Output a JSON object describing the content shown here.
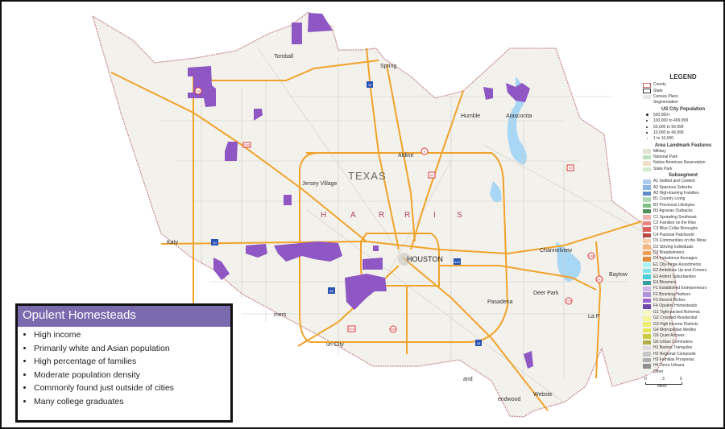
{
  "map": {
    "places": {
      "tomball": "Tomball",
      "spring": "Spring",
      "humble": "Humble",
      "atascocita": "Atascocita",
      "aldine": "Aldine",
      "jersey_village": "Jersey Village",
      "katy": "Katy",
      "houston": "HOUSTON",
      "channelview": "Channelview",
      "baytown": "Baytow",
      "deer_park": "Deer Park",
      "pasadena": "Pasadena",
      "la_porte": "La P",
      "cinco": "mers",
      "missouri_city": "uri City",
      "pearland": "and",
      "friendswood": "endwood",
      "webster": "Webste"
    },
    "state_label": "TEXAS",
    "county_letters": [
      "H",
      "A",
      "R",
      "R",
      "I",
      "S"
    ],
    "highway_shields": [
      "99",
      "290",
      "8",
      "59",
      "90",
      "146",
      "610",
      "69",
      "10",
      "45",
      "225",
      "288",
      "90A",
      "201"
    ],
    "highlight_color": "#8e57c4"
  },
  "legend": {
    "title": "LEGEND",
    "base": [
      {
        "label": "County"
      },
      {
        "label": "State"
      },
      {
        "label": "Census Place"
      },
      {
        "label": "Segmentation"
      }
    ],
    "city_pop_title": "US City Population",
    "city_pop": [
      "500,000+",
      "100,000 to 499,999",
      "50,000 to 99,999",
      "10,000 to 49,999",
      "1 to 10,000"
    ],
    "landmark_title": "Area Landmark Features",
    "landmarks": [
      {
        "label": "Military",
        "color": "#e3e0d6"
      },
      {
        "label": "National Park",
        "color": "#bfe0bf"
      },
      {
        "label": "Native American Reservation",
        "color": "#efe2c8"
      },
      {
        "label": "State Park",
        "color": "#cfeccc"
      }
    ],
    "subsegment_title": "Subsegment",
    "subsegments": [
      {
        "label": "A1 Settled and Content",
        "color": "#aecbed"
      },
      {
        "label": "A2 Spacious Suburbs",
        "color": "#8db6e6"
      },
      {
        "label": "A3 High-Earning Families",
        "color": "#5b8cc9"
      },
      {
        "label": "B1 Country Living",
        "color": "#b2d8b5"
      },
      {
        "label": "B2 Provincial Lifestyles",
        "color": "#7fbf86"
      },
      {
        "label": "B3 Agrarian Outbacks",
        "color": "#4f8f5a"
      },
      {
        "label": "C1 Sprawling Southeast",
        "color": "#f2b2b0"
      },
      {
        "label": "C2 Families on the Rise",
        "color": "#ea8482"
      },
      {
        "label": "C3 Blue Collar Boroughs",
        "color": "#d9625e"
      },
      {
        "label": "C4 Pastoral Patchwork",
        "color": "#b84a46"
      },
      {
        "label": "D1 Communities on the Move",
        "color": "#fbd0a8"
      },
      {
        "label": "D2 Striving Individuals",
        "color": "#f8b57d"
      },
      {
        "label": "D3 Breadwinners",
        "color": "#f29d55"
      },
      {
        "label": "D4 Industrious Acreages",
        "color": "#de8b3c"
      },
      {
        "label": "E1 City-fringe Assortments",
        "color": "#a8f4f6"
      },
      {
        "label": "E2 Ambitious Up-and-Comers",
        "color": "#7de6ea"
      },
      {
        "label": "E3 Ardent Suburbanites",
        "color": "#48d0d4"
      },
      {
        "label": "E4 Bloomers",
        "color": "#3a9c9c"
      },
      {
        "label": "F1 Established Entrepreneurs",
        "color": "#cdb5e6"
      },
      {
        "label": "F2 Booming Harbors",
        "color": "#b08fdc"
      },
      {
        "label": "F3 Recent Riches",
        "color": "#9a63d4"
      },
      {
        "label": "F4 Opulent Homesteads",
        "color": "#6f47a8"
      },
      {
        "label": "G1 Tight-packed Bohemia",
        "color": "#f7f7c2"
      },
      {
        "label": "G2 Crowded Residential",
        "color": "#f3f39a"
      },
      {
        "label": "G3 High-Income Districts",
        "color": "#eeee72"
      },
      {
        "label": "G4 Metropolitan Medley",
        "color": "#e6e652"
      },
      {
        "label": "G5 Quiet Alcoves",
        "color": "#cccc40"
      },
      {
        "label": "G6 Urban Commuters",
        "color": "#b0b045"
      },
      {
        "label": "H1 Barrios Tranquilos",
        "color": "#dddddd"
      },
      {
        "label": "H2 Regional Composite",
        "color": "#c8c8c8"
      },
      {
        "label": "H3 Familias Prosperas",
        "color": "#acacac"
      },
      {
        "label": "H4 Tierra Urbana",
        "color": "#8f8f8f"
      },
      {
        "label": "Other",
        "color": "#f0f0f0"
      }
    ],
    "scale": {
      "ticks": [
        "0",
        "3",
        "6"
      ],
      "unit": "Miles"
    }
  },
  "infobox": {
    "title": "Opulent Homesteads",
    "header_color": "#7c6aae",
    "bullets": [
      "High income",
      "Primarily white and Asian population",
      "High percentage of families",
      "Moderate population density",
      "Commonly found just outside of cities",
      "Many college graduates"
    ]
  }
}
